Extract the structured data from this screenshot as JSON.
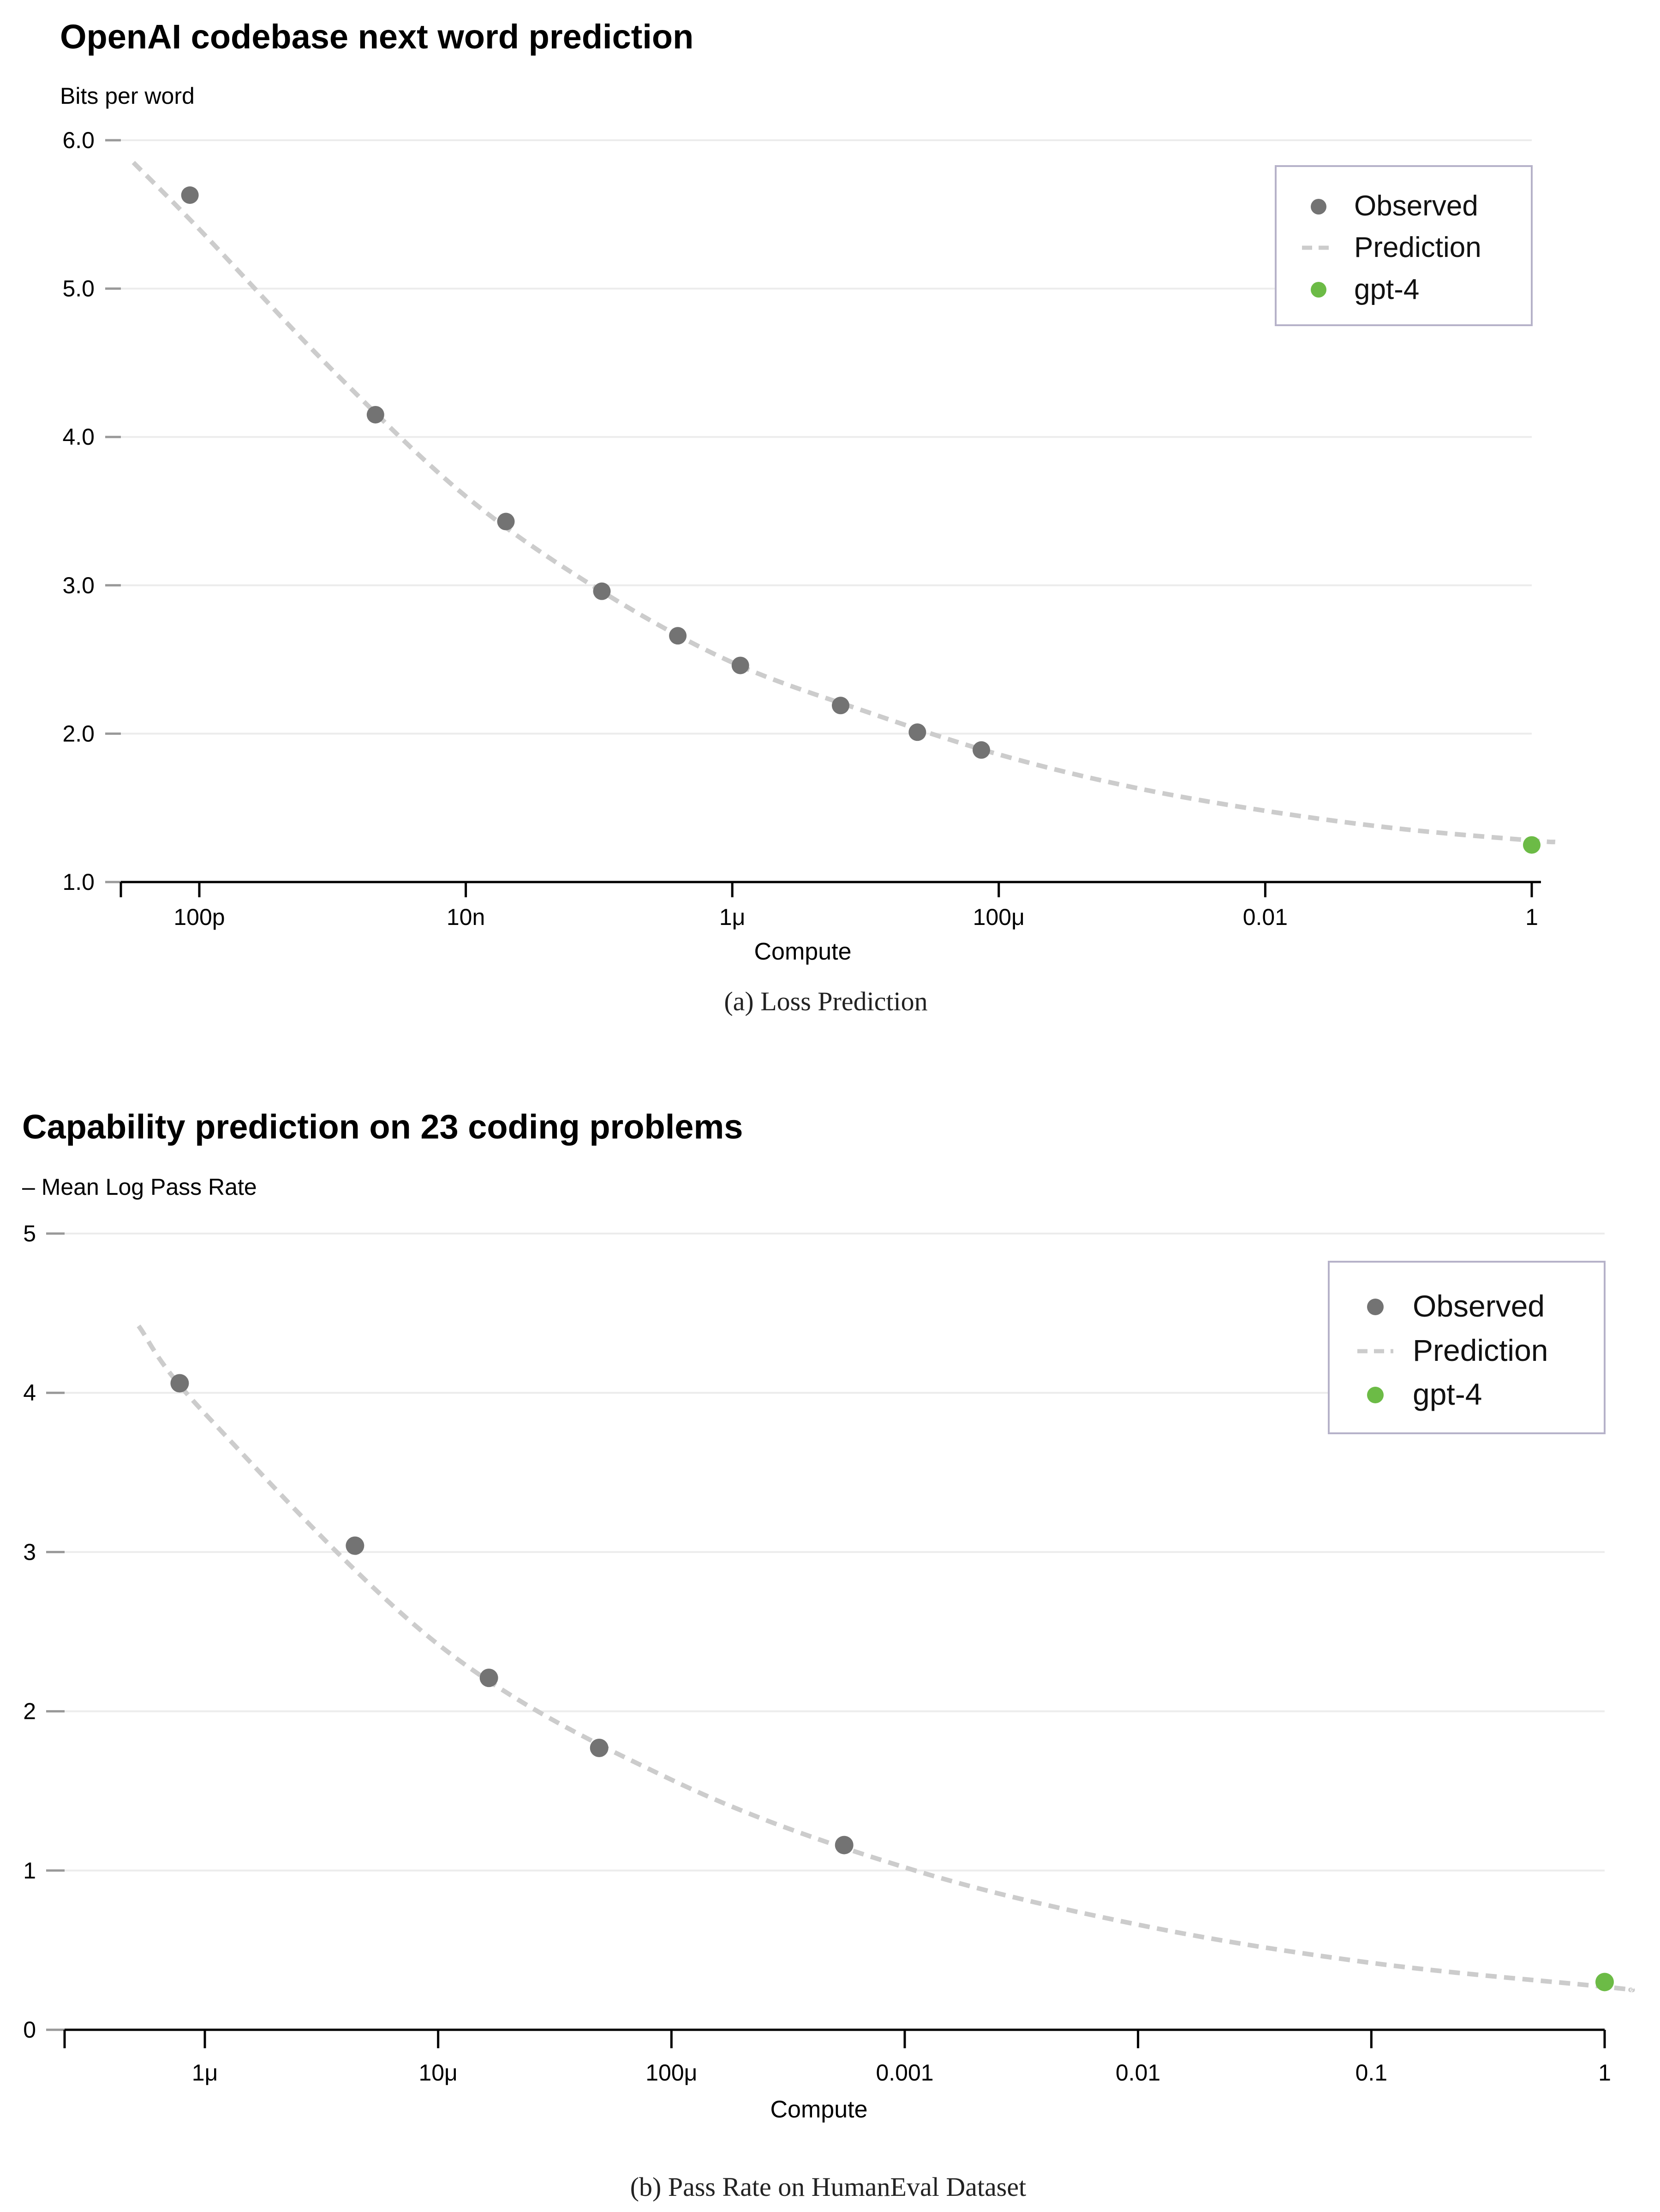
{
  "chart_data": [
    {
      "type": "scatter",
      "title": "OpenAI codebase next word prediction",
      "ylabel": "Bits per word",
      "xlabel": "Compute",
      "caption": "(a)  Loss Prediction",
      "x_scale": "log",
      "xlim": [
        1.5e-11,
        2.2
      ],
      "ylim": [
        1.0,
        6.0
      ],
      "y_ticks": [
        1.0,
        2.0,
        3.0,
        4.0,
        5.0,
        6.0
      ],
      "y_tick_labels": [
        "1.0",
        "2.0",
        "3.0",
        "4.0",
        "5.0",
        "6.0"
      ],
      "x_ticks": [
        1e-10,
        1e-08,
        1e-06,
        0.0001,
        0.01,
        1
      ],
      "x_tick_labels": [
        "100p",
        "10n",
        "1μ",
        "100μ",
        "0.01",
        "1"
      ],
      "grid": true,
      "legend_position": "top-right",
      "legend": [
        "Observed",
        "Prediction",
        "gpt-4"
      ],
      "series": [
        {
          "name": "Observed",
          "color": "#737373",
          "points": [
            {
              "x": 8.5e-11,
              "y": 5.63
            },
            {
              "x": 2.1e-09,
              "y": 4.15
            },
            {
              "x": 2e-08,
              "y": 3.43
            },
            {
              "x": 1.05e-07,
              "y": 2.96
            },
            {
              "x": 3.9e-07,
              "y": 2.66
            },
            {
              "x": 1.15e-06,
              "y": 2.46
            },
            {
              "x": 6.5e-06,
              "y": 2.19
            },
            {
              "x": 2.45e-05,
              "y": 2.01
            },
            {
              "x": 7.4e-05,
              "y": 1.89
            }
          ]
        },
        {
          "name": "Prediction",
          "color": "#cccccc",
          "style": "dashed",
          "points": [
            {
              "x": 3.2e-11,
              "y": 5.85
            },
            {
              "x": 1e-10,
              "y": 5.4
            },
            {
              "x": 1e-09,
              "y": 4.45
            },
            {
              "x": 1e-08,
              "y": 3.6
            },
            {
              "x": 1e-07,
              "y": 2.97
            },
            {
              "x": 1e-06,
              "y": 2.48
            },
            {
              "x": 1e-05,
              "y": 2.15
            },
            {
              "x": 0.0001,
              "y": 1.86
            },
            {
              "x": 0.001,
              "y": 1.64
            },
            {
              "x": 0.01,
              "y": 1.48
            },
            {
              "x": 0.1,
              "y": 1.36
            },
            {
              "x": 1,
              "y": 1.28
            },
            {
              "x": 1.5,
              "y": 1.27
            }
          ]
        },
        {
          "name": "gpt-4",
          "color": "#6cbb46",
          "points": [
            {
              "x": 1,
              "y": 1.25
            }
          ]
        }
      ]
    },
    {
      "type": "scatter",
      "title": "Capability prediction on 23 coding problems",
      "ylabel": "– Mean Log Pass Rate",
      "xlabel": "Compute",
      "caption": "(b)  Pass Rate on HumanEval Dataset",
      "x_scale": "log",
      "xlim": [
        2.5e-07,
        1.4
      ],
      "ylim": [
        0,
        5
      ],
      "y_ticks": [
        0,
        1,
        2,
        3,
        4,
        5
      ],
      "y_tick_labels": [
        "0",
        "1",
        "2",
        "3",
        "4",
        "5"
      ],
      "x_ticks": [
        1e-06,
        1e-05,
        0.0001,
        0.001,
        0.01,
        0.1,
        1
      ],
      "x_tick_labels": [
        "1μ",
        "10μ",
        "100μ",
        "0.001",
        "0.01",
        "0.1",
        "1"
      ],
      "grid": true,
      "legend_position": "top-right",
      "legend": [
        "Observed",
        "Prediction",
        "gpt-4"
      ],
      "series": [
        {
          "name": "Observed",
          "color": "#737373",
          "points": [
            {
              "x": 7.8e-07,
              "y": 4.06
            },
            {
              "x": 4.4e-06,
              "y": 3.04
            },
            {
              "x": 1.65e-05,
              "y": 2.21
            },
            {
              "x": 4.9e-05,
              "y": 1.77
            },
            {
              "x": 0.00055,
              "y": 1.16
            }
          ]
        },
        {
          "name": "Prediction",
          "color": "#cccccc",
          "style": "dashed",
          "points": [
            {
              "x": 5.2e-07,
              "y": 4.42
            },
            {
              "x": 1e-06,
              "y": 3.87
            },
            {
              "x": 1e-05,
              "y": 2.42
            },
            {
              "x": 0.0001,
              "y": 1.57
            },
            {
              "x": 0.001,
              "y": 1.02
            },
            {
              "x": 0.01,
              "y": 0.66
            },
            {
              "x": 0.1,
              "y": 0.42
            },
            {
              "x": 1,
              "y": 0.27
            },
            {
              "x": 1.3,
              "y": 0.25
            }
          ]
        },
        {
          "name": "gpt-4",
          "color": "#6cbb46",
          "points": [
            {
              "x": 1,
              "y": 0.3
            }
          ]
        }
      ]
    }
  ]
}
